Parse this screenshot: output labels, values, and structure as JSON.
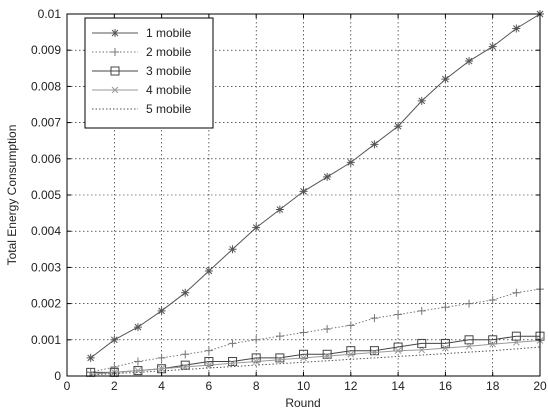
{
  "chart_data": {
    "type": "line",
    "title": "",
    "xlabel": "Round",
    "ylabel": "Total Energy Consumption",
    "xlim": [
      0,
      20
    ],
    "ylim": [
      0,
      0.01
    ],
    "grid": true,
    "legend_placement": "top-left",
    "x_ticks": [
      "0",
      "2",
      "4",
      "6",
      "8",
      "10",
      "12",
      "14",
      "16",
      "18",
      "20"
    ],
    "y_ticks": [
      "0",
      "0.001",
      "0.002",
      "0.003",
      "0.004",
      "0.005",
      "0.006",
      "0.007",
      "0.008",
      "0.009",
      "0.01"
    ],
    "x": [
      1,
      2,
      3,
      4,
      5,
      6,
      7,
      8,
      9,
      10,
      11,
      12,
      13,
      14,
      15,
      16,
      17,
      18,
      19,
      20
    ],
    "series": [
      {
        "name": "1 mobile",
        "marker": "star",
        "line_style": "solid",
        "color": "#555555",
        "values": [
          0.0005,
          0.001,
          0.00135,
          0.0018,
          0.0023,
          0.0029,
          0.0035,
          0.0041,
          0.0046,
          0.0051,
          0.0055,
          0.0059,
          0.0064,
          0.0069,
          0.0076,
          0.0082,
          0.0087,
          0.0091,
          0.0096,
          0.01
        ]
      },
      {
        "name": "2 mobile",
        "marker": "plus",
        "line_style": "dotted",
        "color": "#777777",
        "values": [
          0.0001,
          0.00025,
          0.0004,
          0.0005,
          0.0006,
          0.0007,
          0.0009,
          0.001,
          0.0011,
          0.0012,
          0.0013,
          0.0014,
          0.0016,
          0.0017,
          0.0018,
          0.0019,
          0.002,
          0.0021,
          0.0023,
          0.0024
        ]
      },
      {
        "name": "3 mobile",
        "marker": "square",
        "line_style": "solid",
        "color": "#444444",
        "values": [
          0.0001,
          0.0001,
          0.00015,
          0.0002,
          0.0003,
          0.0004,
          0.0004,
          0.0005,
          0.0005,
          0.0006,
          0.0006,
          0.0007,
          0.0007,
          0.0008,
          0.0009,
          0.0009,
          0.001,
          0.001,
          0.0011,
          0.0011
        ]
      },
      {
        "name": "4 mobile",
        "marker": "x",
        "line_style": "solid",
        "color": "#9a9a9a",
        "values": [
          5e-05,
          0.0001,
          0.00015,
          0.0002,
          0.00025,
          0.0003,
          0.00035,
          0.0004,
          0.00045,
          0.0005,
          0.00055,
          0.0006,
          0.00065,
          0.0007,
          0.00072,
          0.00077,
          0.00082,
          0.00088,
          0.00093,
          0.00098
        ]
      },
      {
        "name": "5 mobile",
        "marker": "none",
        "line_style": "dotted",
        "color": "#555555",
        "values": [
          3e-05,
          7e-05,
          0.0001,
          0.00014,
          0.00018,
          0.00022,
          0.00026,
          0.0003,
          0.00034,
          0.00038,
          0.00042,
          0.00046,
          0.0005,
          0.00054,
          0.00058,
          0.00062,
          0.00066,
          0.0007,
          0.00075,
          0.0008
        ]
      }
    ]
  }
}
